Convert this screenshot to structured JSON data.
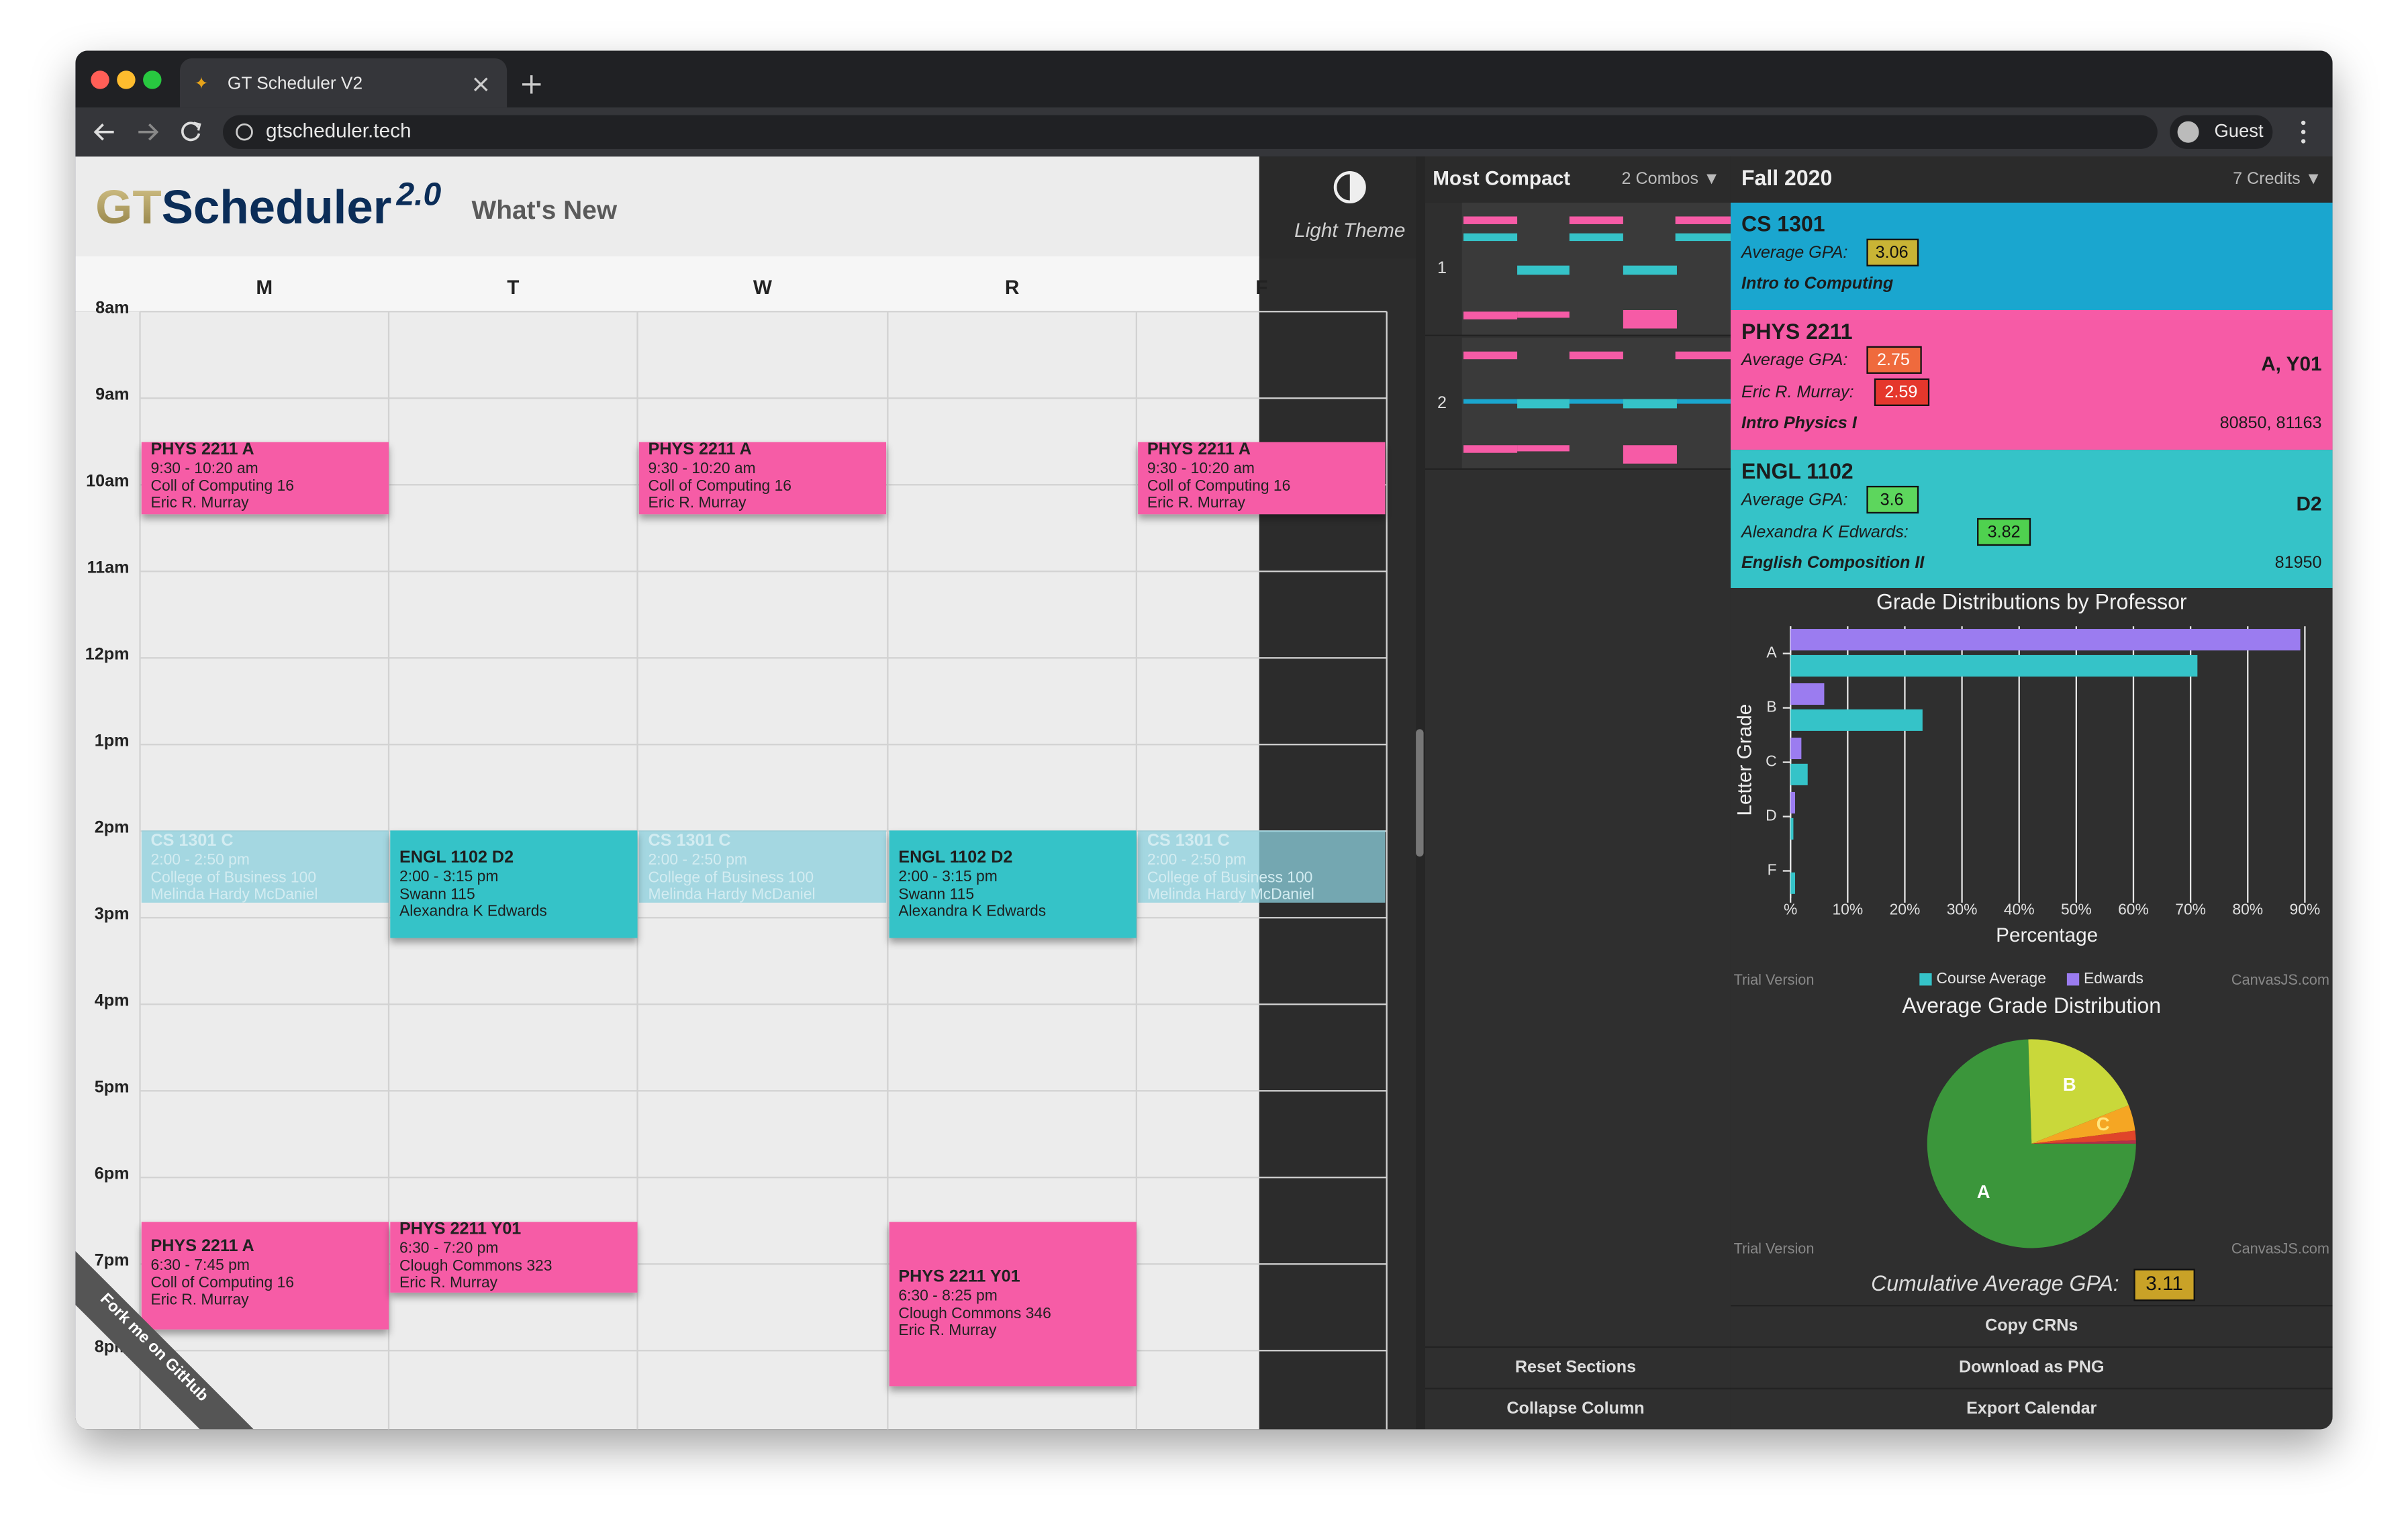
{
  "browser": {
    "tab_title": "GT Scheduler V2",
    "url": "gtscheduler.tech",
    "profile": "Guest"
  },
  "header": {
    "logo_gt": "GT",
    "logo_scheduler": "Scheduler",
    "logo_version": "2.0",
    "whats_new": "What's New",
    "theme_toggle": "Light Theme"
  },
  "calendar": {
    "days": [
      "M",
      "T",
      "W",
      "R",
      "F"
    ],
    "hours": [
      "8am",
      "9am",
      "10am",
      "11am",
      "12pm",
      "1pm",
      "2pm",
      "3pm",
      "4pm",
      "5pm",
      "6pm",
      "7pm",
      "8pm"
    ],
    "events": [
      {
        "title": "PHYS 2211 A",
        "time": "9:30 - 10:20 am",
        "location": "Coll of Computing 16",
        "instructor": "Eric R. Murray"
      },
      {
        "title": "PHYS 2211 A",
        "time": "9:30 - 10:20 am",
        "location": "Coll of Computing 16",
        "instructor": "Eric R. Murray"
      },
      {
        "title": "PHYS 2211 A",
        "time": "9:30 - 10:20 am",
        "location": "Coll of Computing 16",
        "instructor": "Eric R. Murray"
      },
      {
        "title": "CS 1301 C",
        "time": "2:00 - 2:50 pm",
        "location": "College of Business 100",
        "instructor": "Melinda Hardy McDaniel"
      },
      {
        "title": "CS 1301 C",
        "time": "2:00 - 2:50 pm",
        "location": "College of Business 100",
        "instructor": "Melinda Hardy McDaniel"
      },
      {
        "title": "CS 1301 C",
        "time": "2:00 - 2:50 pm",
        "location": "College of Business 100",
        "instructor": "Melinda Hardy McDaniel"
      },
      {
        "title": "ENGL 1102 D2",
        "time": "2:00 - 3:15 pm",
        "location": "Swann 115",
        "instructor": "Alexandra K Edwards"
      },
      {
        "title": "ENGL 1102 D2",
        "time": "2:00 - 3:15 pm",
        "location": "Swann 115",
        "instructor": "Alexandra K Edwards"
      },
      {
        "title": "PHYS 2211 A",
        "time": "6:30 - 7:45 pm",
        "location": "Coll of Computing 16",
        "instructor": "Eric R. Murray"
      },
      {
        "title": "PHYS 2211 Y01",
        "time": "6:30 - 7:20 pm",
        "location": "Clough Commons 323",
        "instructor": "Eric R. Murray"
      },
      {
        "title": "PHYS 2211 Y01",
        "time": "6:30 - 8:25 pm",
        "location": "Clough Commons 346",
        "instructor": "Eric R. Murray"
      }
    ],
    "ribbon": "Fork me on GitHub"
  },
  "combos": {
    "sort": "Most Compact",
    "count": "2 Combos ▼",
    "items": [
      "1",
      "2"
    ],
    "buttons": [
      "Reset Sections",
      "Collapse Column"
    ]
  },
  "courses": {
    "term": "Fall 2020",
    "credits": "7 Credits ▼",
    "items": [
      {
        "code": "CS 1301",
        "gpa_label": "Average GPA:",
        "gpa": 3.06,
        "name": "Intro to Computing"
      },
      {
        "code": "PHYS 2211",
        "gpa_label": "Average GPA:",
        "gpa": 2.75,
        "instructor_label": "Eric R. Murray:",
        "instructor_gpa": 2.59,
        "name": "Intro Physics I",
        "sections": "A, Y01",
        "crns": "80850, 81163"
      },
      {
        "code": "ENGL 1102",
        "gpa_label": "Average GPA:",
        "gpa": 3.6,
        "instructor_label": "Alexandra K Edwards:",
        "instructor_gpa": 3.82,
        "name": "English Composition II",
        "sections": "D2",
        "crns": "81950"
      }
    ]
  },
  "grade_chart": {
    "type": "bar",
    "title": "Grade Distributions by Professor",
    "x_label": "Percentage",
    "y_label": "Letter Grade",
    "categories": [
      "A",
      "B",
      "C",
      "D",
      "F"
    ],
    "series": [
      {
        "name": "Course Average",
        "color": "#35c3c8",
        "values": [
          71.2,
          23.1,
          3.0,
          0.5,
          0.8
        ]
      },
      {
        "name": "Edwards",
        "color": "#9b7cf0",
        "values": [
          89.2,
          5.9,
          1.9,
          0.8,
          0
        ]
      }
    ],
    "xlim": [
      0,
      90
    ],
    "xticks": [
      {
        "value": 0,
        "label": "%"
      },
      {
        "value": 10,
        "label": "10%"
      },
      {
        "value": 20,
        "label": "20%"
      },
      {
        "value": 30,
        "label": "30%"
      },
      {
        "value": 40,
        "label": "40%"
      },
      {
        "value": 50,
        "label": "50%"
      },
      {
        "value": 60,
        "label": "60%"
      },
      {
        "value": 70,
        "label": "70%"
      },
      {
        "value": 80,
        "label": "80%"
      },
      {
        "value": 90,
        "label": "90%"
      }
    ],
    "grid": true,
    "watermark": "Trial Version",
    "credit": "CanvasJS.com"
  },
  "pie_chart": {
    "type": "pie",
    "title": "Average Grade Distribution",
    "categories": [
      "A",
      "B",
      "C",
      null,
      null
    ],
    "values": [
      74.5,
      19.5,
      4,
      1.5,
      0.5
    ],
    "colors": [
      "#3b963b",
      "#c9d83a",
      "#f5a623",
      "#e0452a",
      "#b0304a"
    ],
    "watermark": "Trial Version",
    "credit": "CanvasJS.com"
  },
  "footer": {
    "cumulative_label": "Cumulative Average GPA:",
    "cumulative_gpa": 3.11,
    "actions": [
      "Copy CRNs",
      "Download as PNG",
      "Export Calendar"
    ]
  }
}
